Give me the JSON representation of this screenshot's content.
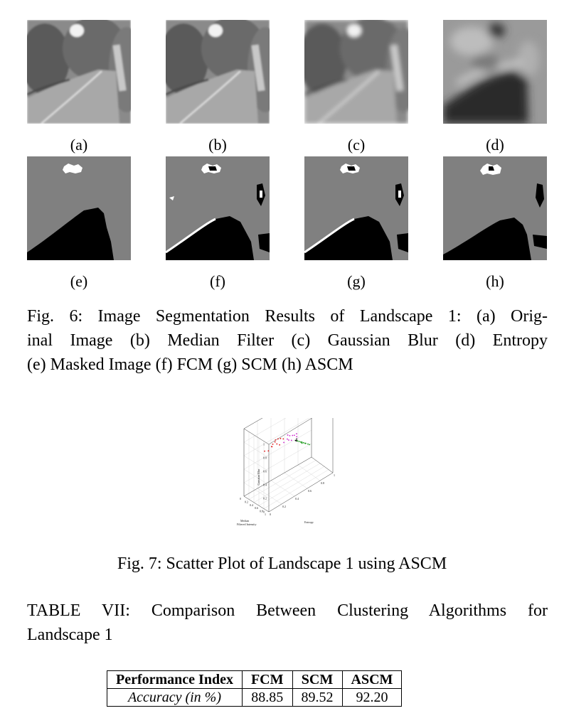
{
  "figure6": {
    "row1_labels": [
      "(a)",
      "(b)",
      "(c)",
      "(d)"
    ],
    "row2_labels": [
      "(e)",
      "(f)",
      "(g)",
      "(h)"
    ],
    "caption_lines": [
      "Fig. 6: Image Segmentation Results of Landscape 1: (a) Orig-",
      "inal Image (b) Median Filter (c) Gaussian Blur (d) Entropy",
      "(e) Masked Image (f) FCM (g) SCM (h) ASCM"
    ]
  },
  "figure7": {
    "caption": "Fig. 7: Scatter Plot of Landscape 1 using ASCM"
  },
  "chart_data": {
    "type": "scatter",
    "title": "",
    "xlabel": "Entropy",
    "ylabel": "Median Filtered Intensity",
    "zlabel": "Gaussian Blur",
    "x_ticks": [
      "0",
      "0.2",
      "0.4",
      "0.6",
      "0.8",
      "1"
    ],
    "y_ticks": [
      "0",
      "0.2",
      "0.4",
      "0.6",
      "0.8",
      "1"
    ],
    "z_ticks": [
      "0",
      "0.2",
      "0.4",
      "0.6",
      "0.8",
      "1"
    ],
    "grid": true,
    "series": [
      {
        "color": "#e01010",
        "points": [
          [
            0.1,
            0.9,
            0.92
          ],
          [
            0.15,
            0.88,
            0.95
          ],
          [
            0.08,
            0.92,
            0.9
          ],
          [
            0.2,
            0.85,
            0.93
          ],
          [
            0.12,
            0.8,
            0.85
          ],
          [
            0.18,
            0.78,
            0.88
          ],
          [
            0.25,
            0.82,
            0.9
          ],
          [
            0.05,
            0.7,
            0.8
          ],
          [
            0.22,
            0.75,
            0.82
          ],
          [
            0.3,
            0.8,
            0.86
          ],
          [
            0.1,
            0.72,
            0.78
          ],
          [
            0.28,
            0.7,
            0.76
          ]
        ]
      },
      {
        "color": "#cc22cc",
        "points": [
          [
            0.35,
            0.85,
            0.9
          ],
          [
            0.4,
            0.8,
            0.85
          ],
          [
            0.45,
            0.78,
            0.82
          ],
          [
            0.38,
            0.75,
            0.8
          ],
          [
            0.5,
            0.72,
            0.78
          ],
          [
            0.42,
            0.7,
            0.75
          ],
          [
            0.55,
            0.68,
            0.72
          ],
          [
            0.48,
            0.65,
            0.7
          ],
          [
            0.36,
            0.66,
            0.74
          ],
          [
            0.52,
            0.76,
            0.8
          ]
        ]
      },
      {
        "color": "#1a9a1a",
        "points": [
          [
            0.6,
            0.55,
            0.6
          ],
          [
            0.65,
            0.5,
            0.55
          ],
          [
            0.7,
            0.45,
            0.5
          ],
          [
            0.75,
            0.4,
            0.45
          ],
          [
            0.8,
            0.35,
            0.4
          ],
          [
            0.68,
            0.48,
            0.52
          ],
          [
            0.72,
            0.42,
            0.48
          ],
          [
            0.78,
            0.38,
            0.42
          ],
          [
            0.85,
            0.3,
            0.35
          ],
          [
            0.62,
            0.52,
            0.58
          ],
          [
            0.88,
            0.28,
            0.32
          ],
          [
            0.74,
            0.36,
            0.44
          ]
        ]
      },
      {
        "color": "#000000",
        "points": [
          [
            0.56,
            0.6,
            0.64
          ],
          [
            0.58,
            0.58,
            0.62
          ],
          [
            0.57,
            0.62,
            0.66
          ]
        ]
      }
    ]
  },
  "table7": {
    "caption_lines": [
      "TABLE VII: Comparison Between Clustering Algorithms for",
      "Landscape 1"
    ],
    "headers": [
      "Performance Index",
      "FCM",
      "SCM",
      "ASCM"
    ],
    "row": [
      "Accuracy (in %)",
      "88.85",
      "89.52",
      "92.20"
    ]
  }
}
